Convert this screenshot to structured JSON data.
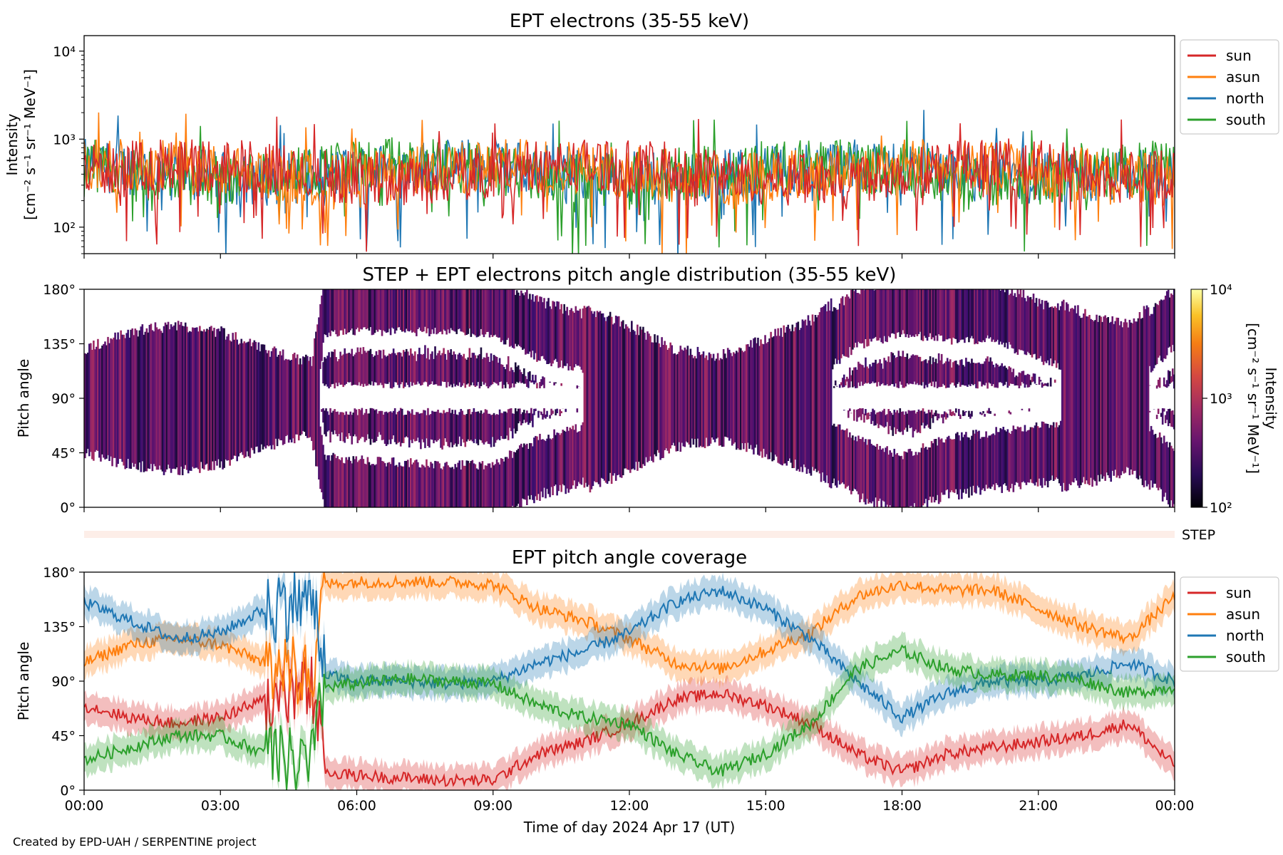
{
  "chart_data": [
    {
      "type": "line",
      "title": "EPT electrons (35-55 keV)",
      "ylabel_lines": [
        "Intensity",
        "[cm⁻² s⁻¹ sr⁻¹ MeV⁻¹]"
      ],
      "yscale": "log",
      "ylim": [
        50,
        15000
      ],
      "ytick_labels": [
        "10²",
        "10³",
        "10⁴"
      ],
      "ytick_values": [
        100,
        1000,
        10000
      ],
      "x_unit": "hours since 00:00",
      "xlim": [
        0,
        24
      ],
      "legend_position": "outside right",
      "series": [
        {
          "name": "sun",
          "color": "#d62728"
        },
        {
          "name": "asun",
          "color": "#ff7f0e"
        },
        {
          "name": "north",
          "color": "#1f77b4"
        },
        {
          "name": "south",
          "color": "#2ca02c"
        }
      ],
      "typical_range": [
        200,
        900
      ]
    },
    {
      "type": "heatmap",
      "title": "STEP + EPT electrons pitch angle distribution (35-55 keV)",
      "ylabel": "Pitch angle",
      "ylim": [
        0,
        180
      ],
      "ytick_labels": [
        "0°",
        "45°",
        "90°",
        "135°",
        "180°"
      ],
      "colorbar": {
        "label_lines": [
          "Intensity",
          "[cm⁻² s⁻¹ sr⁻¹ MeV⁻¹]"
        ],
        "scale": "log",
        "range": [
          100,
          10000
        ],
        "tick_labels": [
          "10²",
          "10³",
          "10⁴"
        ],
        "colormap": "inferno"
      },
      "strip_label": "STEP"
    },
    {
      "type": "line",
      "title": "EPT pitch angle coverage",
      "ylabel": "Pitch angle",
      "xlabel": "Time of day 2024 Apr 17 (UT)",
      "ylim": [
        0,
        180
      ],
      "ytick_labels": [
        "0°",
        "45°",
        "90°",
        "135°",
        "180°"
      ],
      "xlim": [
        0,
        24
      ],
      "xtick_labels": [
        "00:00",
        "03:00",
        "06:00",
        "09:00",
        "12:00",
        "15:00",
        "18:00",
        "21:00",
        "00:00"
      ],
      "legend_position": "outside right",
      "x": [
        0,
        1,
        2,
        3,
        4,
        5,
        5.3,
        6,
        7,
        8,
        9,
        10,
        11,
        12,
        13,
        14,
        15,
        16,
        17,
        18,
        19,
        20,
        21,
        22,
        23,
        24
      ],
      "series": [
        {
          "name": "sun",
          "color": "#d62728",
          "values": [
            70,
            60,
            55,
            60,
            75,
            85,
            15,
            12,
            10,
            8,
            8,
            30,
            40,
            55,
            75,
            80,
            70,
            55,
            30,
            15,
            30,
            35,
            40,
            45,
            55,
            20
          ]
        },
        {
          "name": "asun",
          "color": "#ff7f0e",
          "values": [
            105,
            120,
            125,
            120,
            105,
            95,
            170,
            172,
            172,
            172,
            170,
            150,
            140,
            125,
            105,
            100,
            115,
            130,
            160,
            170,
            165,
            165,
            150,
            135,
            125,
            160
          ]
        },
        {
          "name": "north",
          "color": "#1f77b4",
          "values": [
            155,
            140,
            125,
            130,
            150,
            160,
            95,
            90,
            90,
            88,
            90,
            105,
            115,
            130,
            155,
            165,
            150,
            125,
            90,
            60,
            80,
            90,
            90,
            95,
            105,
            90
          ]
        },
        {
          "name": "south",
          "color": "#2ca02c",
          "values": [
            25,
            35,
            45,
            45,
            30,
            20,
            85,
            88,
            92,
            90,
            88,
            70,
            60,
            55,
            30,
            15,
            30,
            55,
            100,
            115,
            100,
            95,
            95,
            90,
            80,
            85
          ]
        }
      ]
    }
  ],
  "footer": "Created by EPD-UAH / SERPENTINE project"
}
